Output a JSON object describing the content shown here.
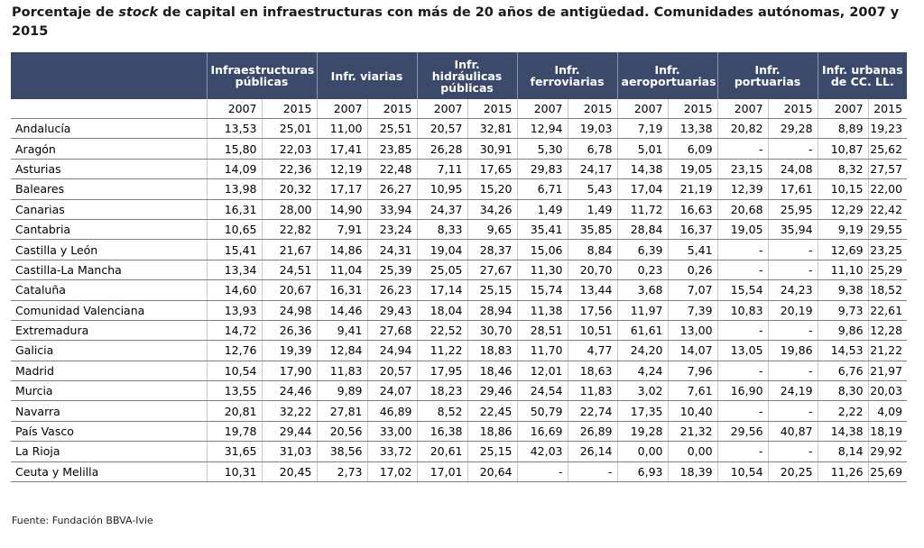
{
  "title": {
    "part1": "Porcentaje de ",
    "italic": "stock",
    "part2": " de capital en infraestructuras con más de 20 años de antigüedad. Comunidades autónomas, 2007 y 2015"
  },
  "groups": [
    "Infraestructuras públicas",
    "Infr. viarias",
    "Infr. hidráulicas públicas",
    "Infr. ferroviarias",
    "Infr. aeroportuarias",
    "Infr. portuarias",
    "Infr. urbanas de CC. LL."
  ],
  "years": [
    "2007",
    "2015"
  ],
  "rows": [
    {
      "name": "Andalucía",
      "values": [
        "13,53",
        "25,01",
        "11,00",
        "25,51",
        "20,57",
        "32,81",
        "12,94",
        "19,03",
        "7,19",
        "13,38",
        "20,82",
        "29,28",
        "8,89",
        "19,23"
      ]
    },
    {
      "name": "Aragón",
      "values": [
        "15,80",
        "22,03",
        "17,41",
        "23,85",
        "26,28",
        "30,91",
        "5,30",
        "6,78",
        "5,01",
        "6,09",
        "-",
        "-",
        "10,87",
        "25,62"
      ]
    },
    {
      "name": "Asturias",
      "values": [
        "14,09",
        "22,36",
        "12,19",
        "22,48",
        "7,11",
        "17,65",
        "29,83",
        "24,17",
        "14,38",
        "19,05",
        "23,15",
        "24,08",
        "8,32",
        "27,57"
      ]
    },
    {
      "name": "Baleares",
      "values": [
        "13,98",
        "20,32",
        "17,17",
        "26,27",
        "10,95",
        "15,20",
        "6,71",
        "5,43",
        "17,04",
        "21,19",
        "12,39",
        "17,61",
        "10,15",
        "22,00"
      ]
    },
    {
      "name": "Canarias",
      "values": [
        "16,31",
        "28,00",
        "14,90",
        "33,94",
        "24,37",
        "34,26",
        "1,49",
        "1,49",
        "11,72",
        "16,63",
        "20,68",
        "25,95",
        "12,29",
        "22,42"
      ]
    },
    {
      "name": "Cantabria",
      "values": [
        "10,65",
        "22,82",
        "7,91",
        "23,24",
        "8,33",
        "9,65",
        "35,41",
        "35,85",
        "28,84",
        "16,37",
        "19,05",
        "35,94",
        "9,19",
        "29,55"
      ]
    },
    {
      "name": "Castilla y León",
      "values": [
        "15,41",
        "21,67",
        "14,86",
        "24,31",
        "19,04",
        "28,37",
        "15,06",
        "8,84",
        "6,39",
        "5,41",
        "-",
        "-",
        "12,69",
        "23,25"
      ]
    },
    {
      "name": "Castilla-La Mancha",
      "values": [
        "13,34",
        "24,51",
        "11,04",
        "25,39",
        "25,05",
        "27,67",
        "11,30",
        "20,70",
        "0,23",
        "0,26",
        "-",
        "-",
        "11,10",
        "25,29"
      ]
    },
    {
      "name": "Cataluña",
      "values": [
        "14,60",
        "20,67",
        "16,31",
        "26,23",
        "17,14",
        "25,15",
        "15,74",
        "13,44",
        "3,68",
        "7,07",
        "15,54",
        "24,23",
        "9,38",
        "18,52"
      ]
    },
    {
      "name": "Comunidad Valenciana",
      "values": [
        "13,93",
        "24,98",
        "14,46",
        "29,43",
        "18,04",
        "28,94",
        "11,38",
        "17,56",
        "11,97",
        "7,39",
        "10,83",
        "20,19",
        "9,73",
        "22,61"
      ]
    },
    {
      "name": "Extremadura",
      "values": [
        "14,72",
        "26,36",
        "9,41",
        "27,68",
        "22,52",
        "30,70",
        "28,51",
        "10,51",
        "61,61",
        "13,00",
        "-",
        "-",
        "9,86",
        "12,28"
      ]
    },
    {
      "name": "Galicia",
      "values": [
        "12,76",
        "19,39",
        "12,84",
        "24,94",
        "11,22",
        "18,83",
        "11,70",
        "4,77",
        "24,20",
        "14,07",
        "13,05",
        "19,86",
        "14,53",
        "21,22"
      ]
    },
    {
      "name": "Madrid",
      "values": [
        "10,54",
        "17,90",
        "11,83",
        "20,57",
        "17,95",
        "18,46",
        "12,01",
        "18,63",
        "4,24",
        "7,96",
        "-",
        "-",
        "6,76",
        "21,97"
      ]
    },
    {
      "name": "Murcia",
      "values": [
        "13,55",
        "24,46",
        "9,89",
        "24,07",
        "18,23",
        "29,46",
        "24,54",
        "11,83",
        "3,02",
        "7,61",
        "16,90",
        "24,19",
        "8,30",
        "20,03"
      ]
    },
    {
      "name": "Navarra",
      "values": [
        "20,81",
        "32,22",
        "27,81",
        "46,89",
        "8,52",
        "22,45",
        "50,79",
        "22,74",
        "17,35",
        "10,40",
        "-",
        "-",
        "2,22",
        "4,09"
      ]
    },
    {
      "name": "País Vasco",
      "values": [
        "19,78",
        "29,44",
        "20,56",
        "33,00",
        "16,38",
        "18,86",
        "16,69",
        "26,89",
        "19,28",
        "21,32",
        "29,56",
        "40,87",
        "14,38",
        "18,19"
      ]
    },
    {
      "name": "La Rioja",
      "values": [
        "31,65",
        "31,03",
        "38,56",
        "33,72",
        "20,61",
        "25,15",
        "42,03",
        "26,14",
        "0,00",
        "0,00",
        "-",
        "-",
        "8,14",
        "29,92"
      ]
    },
    {
      "name": "Ceuta y Melilla",
      "values": [
        "10,31",
        "20,45",
        "2,73",
        "17,02",
        "17,01",
        "20,64",
        "-",
        "-",
        "6,93",
        "18,39",
        "10,54",
        "20,25",
        "11,26",
        "25,69"
      ]
    }
  ],
  "source": "Fuente: Fundación BBVA-Ivie",
  "colors": {
    "header_bg": "#3b4a6b",
    "header_text": "#ffffff"
  }
}
